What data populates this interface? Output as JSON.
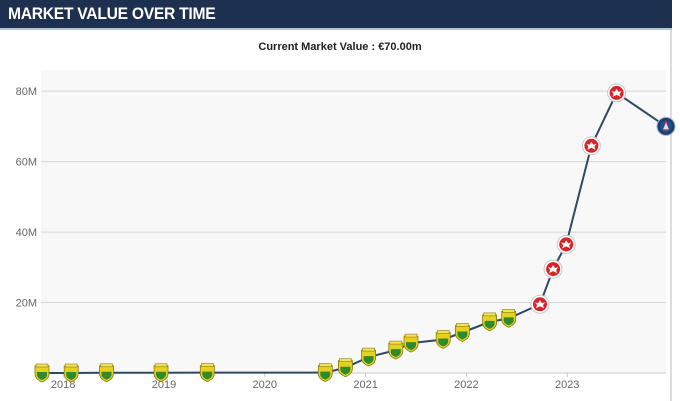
{
  "header": {
    "title": "MARKET VALUE OVER TIME"
  },
  "chart_data": {
    "type": "line",
    "title": "Current Market Value : €70.00m",
    "xlabel": "",
    "ylabel": "",
    "x_ticks": [
      "2018",
      "2019",
      "2020",
      "2021",
      "2022",
      "2023"
    ],
    "y_ticks": [
      "20M",
      "40M",
      "60M",
      "80M"
    ],
    "ylim": [
      0,
      86
    ],
    "xlim": [
      2017.78,
      2023.98
    ],
    "grid": true,
    "line_color": "#2e4866",
    "series": [
      {
        "points": [
          {
            "x": 2017.79,
            "y": 0.0,
            "club": "nantes"
          },
          {
            "x": 2018.08,
            "y": 0.0,
            "club": "nantes"
          },
          {
            "x": 2018.43,
            "y": 0.05,
            "club": "nantes"
          },
          {
            "x": 2018.97,
            "y": 0.05,
            "club": "nantes"
          },
          {
            "x": 2019.43,
            "y": 0.1,
            "club": "nantes"
          },
          {
            "x": 2020.6,
            "y": 0.1,
            "club": "nantes"
          },
          {
            "x": 2020.8,
            "y": 1.5,
            "club": "nantes"
          },
          {
            "x": 2021.03,
            "y": 4.5,
            "club": "nantes"
          },
          {
            "x": 2021.3,
            "y": 6.5,
            "club": "nantes"
          },
          {
            "x": 2021.45,
            "y": 8.5,
            "club": "nantes"
          },
          {
            "x": 2021.77,
            "y": 9.5,
            "club": "nantes"
          },
          {
            "x": 2021.96,
            "y": 11.5,
            "club": "nantes"
          },
          {
            "x": 2022.23,
            "y": 14.5,
            "club": "nantes"
          },
          {
            "x": 2022.42,
            "y": 15.5,
            "club": "nantes"
          },
          {
            "x": 2022.73,
            "y": 19.5,
            "club": "eintracht"
          },
          {
            "x": 2022.86,
            "y": 29.5,
            "club": "eintracht"
          },
          {
            "x": 2022.99,
            "y": 36.5,
            "club": "eintracht"
          },
          {
            "x": 2023.24,
            "y": 64.5,
            "club": "eintracht"
          },
          {
            "x": 2023.49,
            "y": 79.5,
            "club": "eintracht"
          },
          {
            "x": 2023.98,
            "y": 70.0,
            "club": "psg"
          }
        ]
      }
    ]
  },
  "colors": {
    "header_bg": "#1d3050",
    "plot_bg": "#f8f8f8",
    "gridline": "#d6d6d6",
    "nantes": "#e7d11f",
    "nantes_green": "#2f8a2a",
    "eintracht": "#d9232a",
    "psg": "#1f4f8c"
  }
}
